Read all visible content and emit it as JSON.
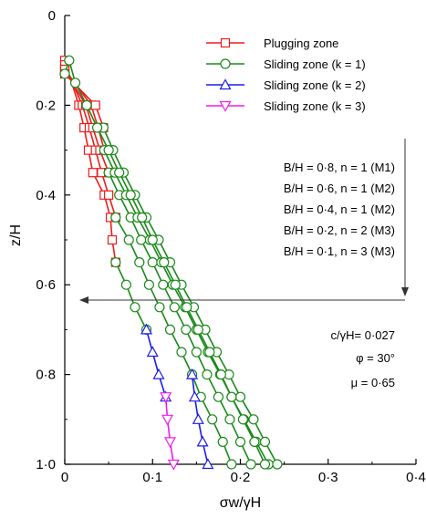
{
  "chart_data": {
    "type": "line",
    "xlabel": "σw/γH",
    "ylabel": "z/H",
    "x_ticks": [
      "0",
      "0·1",
      "0·2",
      "0·3",
      "0·4"
    ],
    "y_ticks": [
      "0",
      "0·2",
      "0·4",
      "0·6",
      "0·8",
      "1·0"
    ],
    "xlim": [
      0,
      0.4
    ],
    "ylim": [
      0,
      1.0
    ],
    "y_inverted": true,
    "x_axis_position": "top",
    "grid": false,
    "legend_position": "top-right",
    "series": [
      {
        "name": "Plugging zone",
        "color": "#ee1c1c",
        "marker": "square",
        "curves": [
          [
            [
              0.0,
              0.1
            ],
            [
              0.016,
              0.2
            ],
            [
              0.022,
              0.25
            ],
            [
              0.027,
              0.3
            ],
            [
              0.032,
              0.35
            ],
            [
              0.045,
              0.4
            ],
            [
              0.052,
              0.45
            ],
            [
              0.054,
              0.5
            ],
            [
              0.058,
              0.55
            ]
          ],
          [
            [
              0.0,
              0.11
            ],
            [
              0.02,
              0.2
            ],
            [
              0.028,
              0.25
            ],
            [
              0.035,
              0.3
            ],
            [
              0.042,
              0.35
            ],
            [
              0.05,
              0.4
            ],
            [
              0.058,
              0.45
            ]
          ],
          [
            [
              0.0,
              0.12
            ],
            [
              0.024,
              0.2
            ],
            [
              0.032,
              0.25
            ],
            [
              0.04,
              0.3
            ],
            [
              0.05,
              0.35
            ]
          ],
          [
            [
              0.0,
              0.12
            ],
            [
              0.03,
              0.2
            ],
            [
              0.038,
              0.25
            ],
            [
              0.045,
              0.3
            ]
          ],
          [
            [
              0.0,
              0.13
            ],
            [
              0.035,
              0.2
            ],
            [
              0.044,
              0.25
            ]
          ]
        ]
      },
      {
        "name": "Sliding zone (k = 1)",
        "color": "#1a8a1a",
        "marker": "circle",
        "curves": [
          [
            [
              0.058,
              0.55
            ],
            [
              0.07,
              0.6
            ],
            [
              0.08,
              0.65
            ],
            [
              0.093,
              0.7
            ]
          ],
          [
            [
              0.058,
              0.45
            ],
            [
              0.073,
              0.5
            ],
            [
              0.085,
              0.55
            ],
            [
              0.096,
              0.6
            ],
            [
              0.108,
              0.65
            ],
            [
              0.12,
              0.7
            ],
            [
              0.133,
              0.75
            ],
            [
              0.145,
              0.8
            ],
            [
              0.155,
              0.85
            ],
            [
              0.168,
              0.9
            ],
            [
              0.18,
              0.95
            ],
            [
              0.19,
              1.0
            ]
          ],
          [
            [
              0.05,
              0.35
            ],
            [
              0.062,
              0.4
            ],
            [
              0.075,
              0.45
            ],
            [
              0.087,
              0.5
            ],
            [
              0.1,
              0.55
            ],
            [
              0.112,
              0.6
            ],
            [
              0.125,
              0.65
            ],
            [
              0.138,
              0.7
            ],
            [
              0.15,
              0.75
            ],
            [
              0.162,
              0.8
            ],
            [
              0.175,
              0.85
            ],
            [
              0.188,
              0.9
            ],
            [
              0.2,
              0.95
            ],
            [
              0.212,
              1.0
            ]
          ],
          [
            [
              0.045,
              0.3
            ],
            [
              0.057,
              0.35
            ],
            [
              0.07,
              0.4
            ],
            [
              0.083,
              0.45
            ],
            [
              0.097,
              0.5
            ],
            [
              0.11,
              0.55
            ],
            [
              0.123,
              0.6
            ],
            [
              0.137,
              0.65
            ],
            [
              0.15,
              0.7
            ],
            [
              0.163,
              0.75
            ],
            [
              0.177,
              0.8
            ],
            [
              0.19,
              0.85
            ],
            [
              0.204,
              0.9
            ],
            [
              0.218,
              0.95
            ],
            [
              0.232,
              1.0
            ]
          ],
          [
            [
              0.044,
              0.25
            ],
            [
              0.055,
              0.3
            ],
            [
              0.067,
              0.35
            ],
            [
              0.08,
              0.4
            ],
            [
              0.093,
              0.45
            ],
            [
              0.107,
              0.5
            ],
            [
              0.12,
              0.55
            ],
            [
              0.133,
              0.6
            ],
            [
              0.147,
              0.65
            ],
            [
              0.16,
              0.7
            ],
            [
              0.173,
              0.75
            ],
            [
              0.187,
              0.8
            ],
            [
              0.2,
              0.85
            ],
            [
              0.215,
              0.9
            ],
            [
              0.228,
              0.95
            ],
            [
              0.242,
              1.0
            ]
          ],
          [
            [
              0.0,
              0.13
            ],
            [
              0.005,
              0.1
            ],
            [
              0.012,
              0.15
            ],
            [
              0.025,
              0.2
            ],
            [
              0.037,
              0.25
            ],
            [
              0.05,
              0.3
            ],
            [
              0.062,
              0.35
            ],
            [
              0.075,
              0.4
            ],
            [
              0.088,
              0.45
            ],
            [
              0.1,
              0.5
            ],
            [
              0.113,
              0.55
            ],
            [
              0.126,
              0.6
            ],
            [
              0.139,
              0.65
            ],
            [
              0.152,
              0.7
            ],
            [
              0.165,
              0.75
            ],
            [
              0.178,
              0.8
            ],
            [
              0.19,
              0.85
            ],
            [
              0.203,
              0.9
            ],
            [
              0.216,
              0.95
            ],
            [
              0.228,
              1.0
            ]
          ]
        ]
      },
      {
        "name": "Sliding zone (k = 2)",
        "color": "#1c1cee",
        "marker": "triangle-up",
        "curves": [
          [
            [
              0.093,
              0.7
            ],
            [
              0.1,
              0.75
            ],
            [
              0.107,
              0.8
            ],
            [
              0.115,
              0.85
            ]
          ],
          [
            [
              0.145,
              0.8
            ],
            [
              0.148,
              0.85
            ],
            [
              0.152,
              0.9
            ],
            [
              0.157,
              0.95
            ],
            [
              0.163,
              1.0
            ]
          ]
        ]
      },
      {
        "name": "Sliding zone (k = 3)",
        "color": "#ee1cee",
        "marker": "triangle-down",
        "curves": [
          [
            [
              0.115,
              0.85
            ],
            [
              0.117,
              0.9
            ],
            [
              0.12,
              0.95
            ],
            [
              0.124,
              1.0
            ]
          ]
        ]
      }
    ],
    "case_labels": [
      "B/H = 0·8, n = 1 (M1)",
      "B/H = 0·6, n = 1 (M2)",
      "B/H = 0·4, n = 1 (M2)",
      "B/H = 0·2, n = 2 (M3)",
      "B/H = 0·1, n = 3 (M3)"
    ],
    "parameters": [
      "c/γH= 0·027",
      "φ = 30°",
      "μ = 0·65"
    ],
    "arrow_at_y": 0.63
  }
}
